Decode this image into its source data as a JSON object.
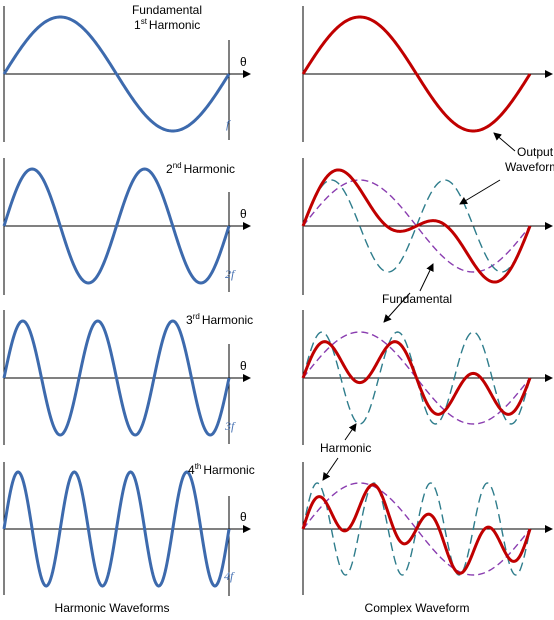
{
  "left_panels": [
    {
      "label": "Harmonic",
      "ord": "1",
      "sup": "st",
      "top": "Fundamental",
      "freq": "f",
      "theta": "θ"
    },
    {
      "label": "Harmonic",
      "ord": "2",
      "sup": "nd",
      "top": "",
      "freq": "2f",
      "theta": "θ"
    },
    {
      "label": "Harmonic",
      "ord": "3",
      "sup": "rd",
      "top": "",
      "freq": "3f",
      "theta": "θ"
    },
    {
      "label": "Harmonic",
      "ord": "4",
      "sup": "th",
      "top": "",
      "freq": "4f",
      "theta": "θ"
    }
  ],
  "annotations": {
    "output_line1": "Output",
    "output_line2": "Waveform",
    "fundamental": "Fundamental",
    "harmonic": "Harmonic"
  },
  "captions": {
    "left": "Harmonic Waveforms",
    "right": "Complex Waveform"
  },
  "colors": {
    "harmonic_wave": "#3d6aad",
    "complex_wave": "#c00000",
    "dashed_fundamental": "#8a3db0",
    "dashed_harmonic": "#2f7d8c",
    "axis": "#000000"
  }
}
